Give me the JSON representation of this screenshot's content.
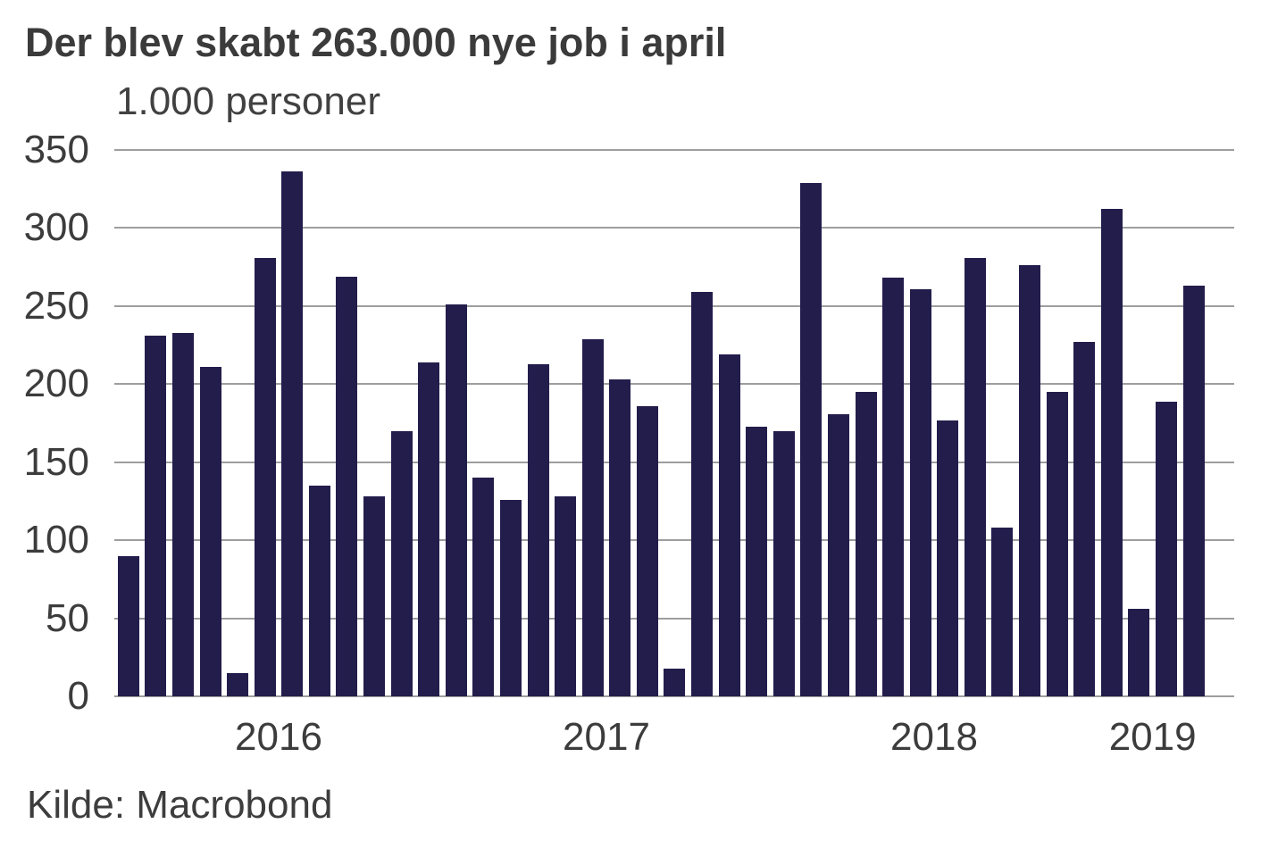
{
  "header": {
    "title": "Der blev skabt 263.000 nye job i april",
    "subtitle": "1.000 personer"
  },
  "footer": {
    "source": "Kilde: Macrobond"
  },
  "chart_data": {
    "type": "bar",
    "title": "Der blev skabt 263.000 nye job i april",
    "subtitle": "1.000 personer",
    "ylabel": "1.000 personer",
    "xlabel": "",
    "ylim": [
      0,
      350
    ],
    "y_ticks": [
      0,
      50,
      100,
      150,
      200,
      250,
      300,
      350
    ],
    "x_tick_labels": [
      "2016",
      "2017",
      "2018",
      "2019"
    ],
    "grid": "horizontal",
    "legend": "none",
    "bar_color": "#231d4c",
    "gridline_color": "#9e9e9e",
    "text_color": "#3c3c3c",
    "source": "Kilde: Macrobond",
    "categories": [
      "2016-01",
      "2016-02",
      "2016-03",
      "2016-04",
      "2016-05",
      "2016-06",
      "2016-07",
      "2016-08",
      "2016-09",
      "2016-10",
      "2016-11",
      "2016-12",
      "2017-01",
      "2017-02",
      "2017-03",
      "2017-04",
      "2017-05",
      "2017-06",
      "2017-07",
      "2017-08",
      "2017-09",
      "2017-10",
      "2017-11",
      "2017-12",
      "2018-01",
      "2018-02",
      "2018-03",
      "2018-04",
      "2018-05",
      "2018-06",
      "2018-07",
      "2018-08",
      "2018-09",
      "2018-10",
      "2018-11",
      "2018-12",
      "2019-01",
      "2019-02",
      "2019-03",
      "2019-04"
    ],
    "values": [
      90,
      231,
      233,
      211,
      15,
      281,
      336,
      135,
      269,
      128,
      170,
      214,
      251,
      140,
      126,
      213,
      128,
      229,
      203,
      186,
      18,
      259,
      219,
      173,
      170,
      329,
      181,
      195,
      268,
      261,
      177,
      281,
      108,
      276,
      195,
      227,
      312,
      56,
      189,
      263
    ]
  }
}
